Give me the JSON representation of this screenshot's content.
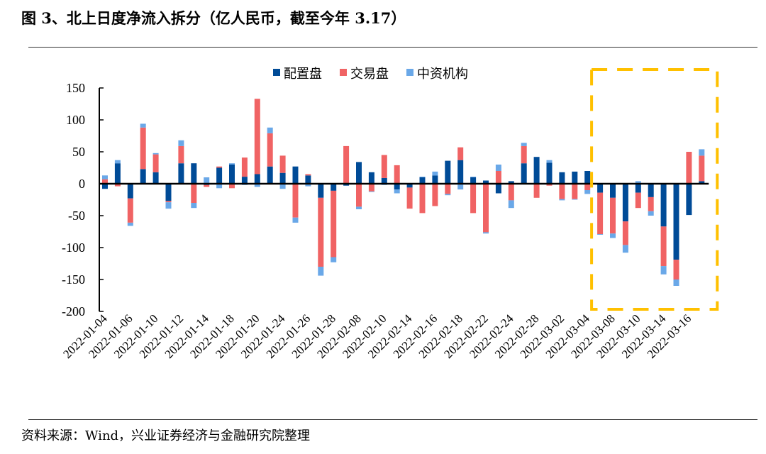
{
  "title": "图 3、北上日度净流入拆分（亿人民币，截至今年 3.17）",
  "source": "资料来源：Wind，兴业证券经济与金融研究院整理",
  "chart_data": {
    "type": "bar",
    "stacked": true,
    "title": "",
    "xlabel": "",
    "ylabel": "",
    "ylim": [
      -200,
      150
    ],
    "yticks": [
      150,
      100,
      50,
      0,
      -50,
      -100,
      -150,
      -200
    ],
    "grid": false,
    "legend_position": "top-center",
    "highlight_box": {
      "from": "2022-03-07",
      "to": "2022-03-17",
      "color": "#FFC000",
      "style": "dashed"
    },
    "categories": [
      "2022-01-04",
      "2022-01-05",
      "2022-01-06",
      "2022-01-07",
      "2022-01-10",
      "2022-01-11",
      "2022-01-12",
      "2022-01-13",
      "2022-01-14",
      "2022-01-17",
      "2022-01-18",
      "2022-01-19",
      "2022-01-20",
      "2022-01-21",
      "2022-01-24",
      "2022-01-25",
      "2022-01-26",
      "2022-01-27",
      "2022-01-28",
      "2022-02-07",
      "2022-02-08",
      "2022-02-09",
      "2022-02-10",
      "2022-02-11",
      "2022-02-14",
      "2022-02-15",
      "2022-02-16",
      "2022-02-17",
      "2022-02-18",
      "2022-02-21",
      "2022-02-22",
      "2022-02-23",
      "2022-02-24",
      "2022-02-25",
      "2022-02-28",
      "2022-03-01",
      "2022-03-02",
      "2022-03-03",
      "2022-03-04",
      "2022-03-07",
      "2022-03-08",
      "2022-03-09",
      "2022-03-10",
      "2022-03-11",
      "2022-03-14",
      "2022-03-15",
      "2022-03-16",
      "2022-03-17"
    ],
    "tick_labels": [
      "2022-01-04",
      "2022-01-06",
      "2022-01-10",
      "2022-01-12",
      "2022-01-14",
      "2022-01-18",
      "2022-01-20",
      "2022-01-24",
      "2022-01-26",
      "2022-01-28",
      "2022-02-08",
      "2022-02-10",
      "2022-02-14",
      "2022-02-16",
      "2022-02-18",
      "2022-02-22",
      "2022-02-24",
      "2022-02-28",
      "2022-03-02",
      "2022-03-04",
      "2022-03-08",
      "2022-03-10",
      "2022-03-14",
      "2022-03-16"
    ],
    "series": [
      {
        "name": "配置盘",
        "color": "#004B97",
        "values": [
          -8,
          32,
          -23,
          23,
          18,
          -27,
          32,
          32,
          -2,
          25,
          30,
          11,
          15,
          27,
          17,
          27,
          13,
          -22,
          -11,
          -3,
          34,
          18,
          9,
          -9,
          -6,
          10,
          13,
          36,
          37,
          10,
          5,
          -15,
          4,
          32,
          42,
          33,
          18,
          19,
          20,
          -14,
          -22,
          -59,
          -14,
          -21,
          -67,
          -119,
          -49,
          4
        ]
      },
      {
        "name": "交易盘",
        "color": "#F06364",
        "values": [
          7,
          -4,
          -38,
          65,
          28,
          -2,
          27,
          -30,
          -3,
          2,
          -7,
          30,
          118,
          52,
          27,
          -53,
          2,
          -108,
          -104,
          59,
          -36,
          -12,
          36,
          29,
          -33,
          -46,
          -35,
          -16,
          20,
          -46,
          -76,
          20,
          -26,
          27,
          -22,
          -3,
          -24,
          -24,
          -10,
          -65,
          -56,
          -37,
          -24,
          -22,
          -62,
          -31,
          50,
          40
        ]
      },
      {
        "name": "中资机构",
        "color": "#6AA8E8",
        "values": [
          6,
          5,
          -5,
          6,
          2,
          -10,
          9,
          -8,
          10,
          -7,
          2,
          -2,
          -5,
          9,
          -8,
          -8,
          -4,
          -14,
          -8,
          0,
          -4,
          -1,
          -2,
          -6,
          0,
          1,
          6,
          -2,
          -9,
          1,
          -2,
          10,
          -12,
          5,
          0,
          4,
          -2,
          -1,
          -6,
          -1,
          -7,
          -12,
          4,
          -7,
          -13,
          -10,
          0,
          10
        ]
      }
    ]
  }
}
